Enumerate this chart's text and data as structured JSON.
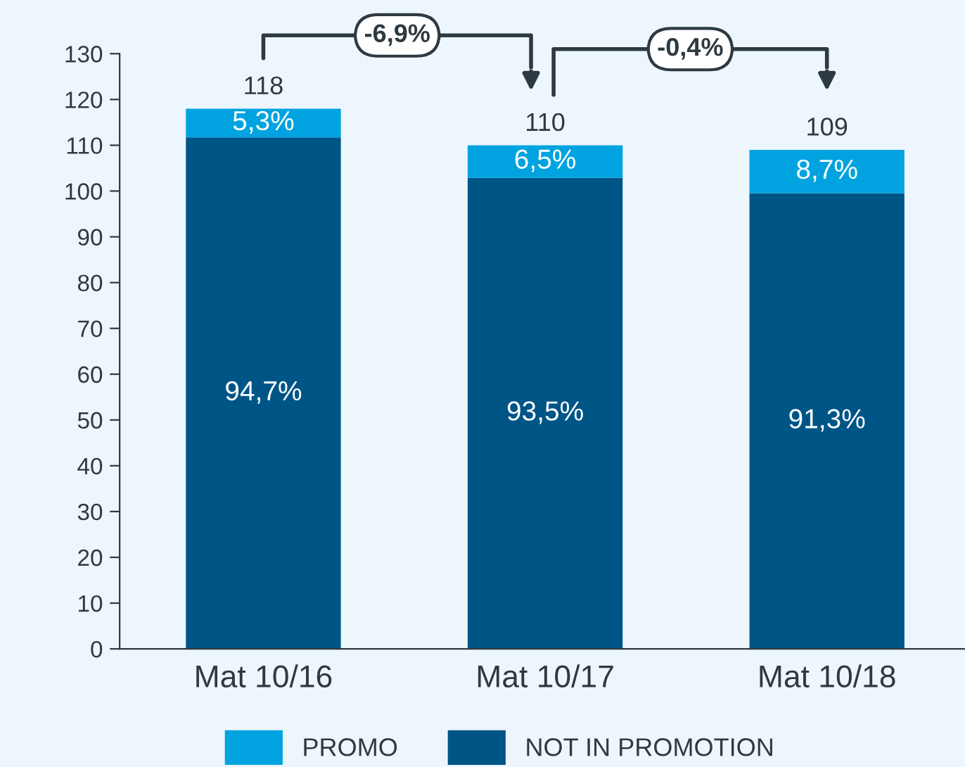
{
  "chart_data": {
    "type": "bar",
    "stacked": true,
    "categories": [
      "Mat 10/16",
      "Mat 10/17",
      "Mat 10/18"
    ],
    "series": [
      {
        "name": "NOT IN PROMOTION",
        "color": "#005587",
        "values": [
          111.7,
          102.9,
          99.5
        ]
      },
      {
        "name": "PROMO",
        "color": "#00a3e0",
        "values": [
          6.3,
          7.1,
          9.5
        ]
      }
    ],
    "totals": [
      "118",
      "110",
      "109"
    ],
    "annotations": [
      "-6,9%",
      "-0,4%",
      "94,7%",
      "93,5%",
      "91,3%",
      "5,3%",
      "6,5%",
      "8,7%"
    ],
    "ylim": [
      0,
      130
    ],
    "yticks": [
      0,
      10,
      20,
      30,
      40,
      50,
      60,
      70,
      80,
      90,
      100,
      110,
      120,
      130
    ],
    "grid": false,
    "legend": "bottom"
  }
}
